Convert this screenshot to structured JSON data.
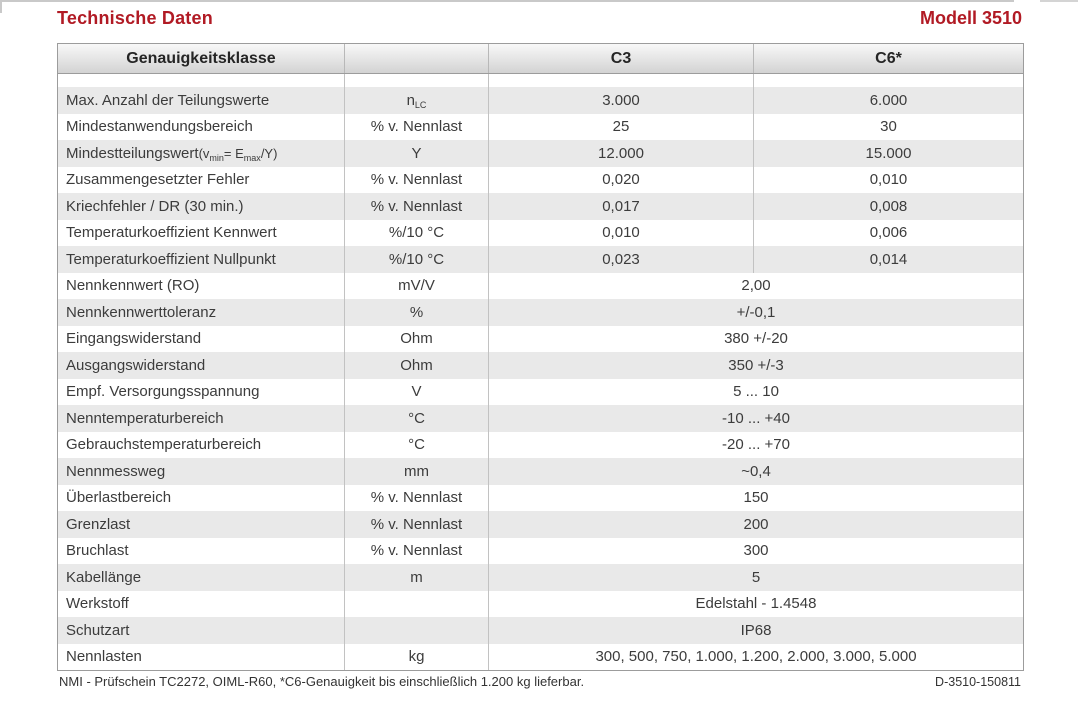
{
  "page": {
    "title": "Technische Daten",
    "model": "Modell 3510"
  },
  "colors": {
    "accent": "#b11a24",
    "text": "#3c3c3c",
    "border": "#9c9c9c",
    "row_shaded": "#e9e9e9",
    "header_gradient_top": "#f8f8f8",
    "header_gradient_bottom": "#d3d3d3"
  },
  "table": {
    "columns": {
      "accuracy_class": "Genauigkeitsklasse",
      "unit": "",
      "c3": "C3",
      "c6": "C6*"
    },
    "rows": [
      {
        "label": [
          {
            "t": "Max. Anzahl der Teilungswerte"
          }
        ],
        "unit": [
          {
            "t": "n"
          },
          {
            "t": "LC",
            "sub": true
          }
        ],
        "c3": "3.000",
        "c6": "6.000"
      },
      {
        "label": [
          {
            "t": "Mindestanwendungsbereich"
          }
        ],
        "unit": [
          {
            "t": "% v. Nennlast"
          }
        ],
        "c3": "25",
        "c6": "30"
      },
      {
        "label": [
          {
            "t": "Mindestteilungswert "
          },
          {
            "t": "(v",
            "small": true
          },
          {
            "t": "min",
            "sub": true
          },
          {
            "t": " = E",
            "small": true
          },
          {
            "t": "max",
            "sub": true
          },
          {
            "t": "/Y)",
            "small": true
          }
        ],
        "unit": [
          {
            "t": "Y"
          }
        ],
        "c3": "12.000",
        "c6": "15.000"
      },
      {
        "label": [
          {
            "t": "Zusammengesetzter Fehler"
          }
        ],
        "unit": [
          {
            "t": "% v. Nennlast"
          }
        ],
        "c3": "0,020",
        "c6": "0,010"
      },
      {
        "label": [
          {
            "t": "Kriechfehler / DR (30 min.)"
          }
        ],
        "unit": [
          {
            "t": "% v. Nennlast"
          }
        ],
        "c3": "0,017",
        "c6": "0,008"
      },
      {
        "label": [
          {
            "t": "Temperaturkoeffizient Kennwert"
          }
        ],
        "unit": [
          {
            "t": "%/10 °C"
          }
        ],
        "c3": "0,010",
        "c6": "0,006"
      },
      {
        "label": [
          {
            "t": "Temperaturkoeffizient Nullpunkt"
          }
        ],
        "unit": [
          {
            "t": "%/10 °C"
          }
        ],
        "c3": "0,023",
        "c6": "0,014"
      },
      {
        "label": [
          {
            "t": "Nennkennwert (RO)"
          }
        ],
        "unit": [
          {
            "t": "mV/V"
          }
        ],
        "merged": true,
        "value": "2,00"
      },
      {
        "label": [
          {
            "t": "Nennkennwerttoleranz"
          }
        ],
        "unit": [
          {
            "t": "%"
          }
        ],
        "merged": true,
        "value": "+/-0,1"
      },
      {
        "label": [
          {
            "t": "Eingangswiderstand"
          }
        ],
        "unit": [
          {
            "t": "Ohm"
          }
        ],
        "merged": true,
        "value": "380 +/-20"
      },
      {
        "label": [
          {
            "t": "Ausgangswiderstand"
          }
        ],
        "unit": [
          {
            "t": "Ohm"
          }
        ],
        "merged": true,
        "value": "350 +/-3"
      },
      {
        "label": [
          {
            "t": "Empf. Versorgungsspannung"
          }
        ],
        "unit": [
          {
            "t": "V"
          }
        ],
        "merged": true,
        "value": "5 ... 10"
      },
      {
        "label": [
          {
            "t": "Nenntemperaturbereich"
          }
        ],
        "unit": [
          {
            "t": "°C"
          }
        ],
        "merged": true,
        "value": "-10 ... +40"
      },
      {
        "label": [
          {
            "t": "Gebrauchstemperaturbereich"
          }
        ],
        "unit": [
          {
            "t": "°C"
          }
        ],
        "merged": true,
        "value": "-20 ... +70"
      },
      {
        "label": [
          {
            "t": "Nennmessweg"
          }
        ],
        "unit": [
          {
            "t": "mm"
          }
        ],
        "merged": true,
        "value": "~0,4"
      },
      {
        "label": [
          {
            "t": "Überlastbereich"
          }
        ],
        "unit": [
          {
            "t": "% v. Nennlast"
          }
        ],
        "merged": true,
        "value": "150"
      },
      {
        "label": [
          {
            "t": "Grenzlast"
          }
        ],
        "unit": [
          {
            "t": "% v. Nennlast"
          }
        ],
        "merged": true,
        "value": "200"
      },
      {
        "label": [
          {
            "t": "Bruchlast"
          }
        ],
        "unit": [
          {
            "t": "% v. Nennlast"
          }
        ],
        "merged": true,
        "value": "300"
      },
      {
        "label": [
          {
            "t": "Kabellänge"
          }
        ],
        "unit": [
          {
            "t": "m"
          }
        ],
        "merged": true,
        "value": "5"
      },
      {
        "label": [
          {
            "t": "Werkstoff"
          }
        ],
        "unit": [],
        "merged": true,
        "value": "Edelstahl - 1.4548"
      },
      {
        "label": [
          {
            "t": "Schutzart"
          }
        ],
        "unit": [],
        "merged": true,
        "value": "IP68"
      },
      {
        "label": [
          {
            "t": "Nennlasten"
          }
        ],
        "unit": [
          {
            "t": "kg"
          }
        ],
        "merged": true,
        "value": "300, 500, 750, 1.000, 1.200, 2.000, 3.000, 5.000"
      }
    ]
  },
  "footer": {
    "note": "NMI - Prüfschein TC2272, OIML-R60, *C6-Genauigkeit bis einschließlich 1.200 kg lieferbar.",
    "doc_code": "D-3510-150811"
  }
}
